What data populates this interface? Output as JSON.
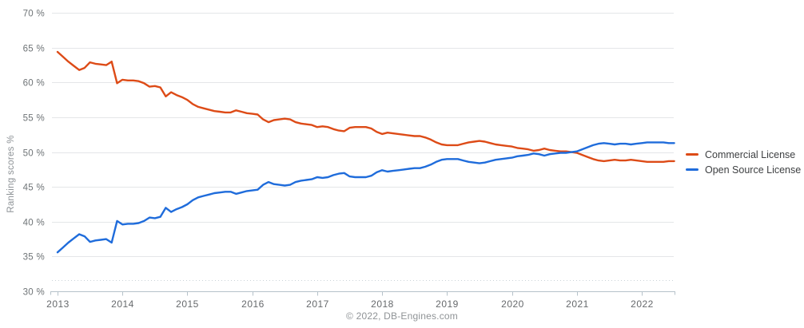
{
  "chart_data": {
    "type": "line",
    "title": "",
    "xlabel": "",
    "ylabel": "Ranking scores %",
    "interval": "monthly",
    "x_start": "2013-01",
    "x_end": "2022-07",
    "grid": "horizontal",
    "legend_position": "right",
    "ylim_axis": [
      30,
      70
    ],
    "x_tick_labels": [
      "2013",
      "2014",
      "2015",
      "2016",
      "2017",
      "2018",
      "2019",
      "2020",
      "2021",
      "2022"
    ],
    "y_ticks": [
      {
        "value": 70,
        "label": "70 %"
      },
      {
        "value": 65,
        "label": "65 %"
      },
      {
        "value": 60,
        "label": "60 %"
      },
      {
        "value": 55,
        "label": "55 %"
      },
      {
        "value": 50,
        "label": "50 %"
      },
      {
        "value": 45,
        "label": "45 %"
      },
      {
        "value": 40,
        "label": "40 %"
      },
      {
        "value": 35,
        "label": "35 %"
      },
      {
        "value": 30,
        "label": "30 %"
      }
    ],
    "series": [
      {
        "name": "Commercial License",
        "color": "#dd4b17",
        "values": [
          64.4,
          63.7,
          63.0,
          62.4,
          61.8,
          62.1,
          62.9,
          62.7,
          62.6,
          62.5,
          63.0,
          59.9,
          60.4,
          60.3,
          60.3,
          60.2,
          59.9,
          59.4,
          59.5,
          59.3,
          58.0,
          58.6,
          58.2,
          57.9,
          57.5,
          56.9,
          56.5,
          56.3,
          56.1,
          55.9,
          55.8,
          55.7,
          55.7,
          56.0,
          55.8,
          55.6,
          55.5,
          55.4,
          54.7,
          54.3,
          54.6,
          54.7,
          54.8,
          54.7,
          54.3,
          54.1,
          54.0,
          53.9,
          53.6,
          53.7,
          53.6,
          53.3,
          53.1,
          53.0,
          53.5,
          53.6,
          53.6,
          53.6,
          53.4,
          52.9,
          52.6,
          52.8,
          52.7,
          52.6,
          52.5,
          52.4,
          52.3,
          52.3,
          52.1,
          51.8,
          51.4,
          51.1,
          51.0,
          51.0,
          51.0,
          51.2,
          51.4,
          51.5,
          51.6,
          51.5,
          51.3,
          51.1,
          51.0,
          50.9,
          50.8,
          50.6,
          50.5,
          50.4,
          50.2,
          50.3,
          50.5,
          50.3,
          50.2,
          50.1,
          50.1,
          50.0,
          49.9,
          49.6,
          49.3,
          49.0,
          48.8,
          48.7,
          48.8,
          48.9,
          48.8,
          48.8,
          48.9,
          48.8,
          48.7,
          48.6,
          48.6,
          48.6,
          48.6,
          48.7,
          48.7
        ]
      },
      {
        "name": "Open Source License",
        "color": "#1f6cdb",
        "values": [
          35.6,
          36.3,
          37.0,
          37.6,
          38.2,
          37.9,
          37.1,
          37.3,
          37.4,
          37.5,
          37.0,
          40.1,
          39.6,
          39.7,
          39.7,
          39.8,
          40.1,
          40.6,
          40.5,
          40.7,
          42.0,
          41.4,
          41.8,
          42.1,
          42.5,
          43.1,
          43.5,
          43.7,
          43.9,
          44.1,
          44.2,
          44.3,
          44.3,
          44.0,
          44.2,
          44.4,
          44.5,
          44.6,
          45.3,
          45.7,
          45.4,
          45.3,
          45.2,
          45.3,
          45.7,
          45.9,
          46.0,
          46.1,
          46.4,
          46.3,
          46.4,
          46.7,
          46.9,
          47.0,
          46.5,
          46.4,
          46.4,
          46.4,
          46.6,
          47.1,
          47.4,
          47.2,
          47.3,
          47.4,
          47.5,
          47.6,
          47.7,
          47.7,
          47.9,
          48.2,
          48.6,
          48.9,
          49.0,
          49.0,
          49.0,
          48.8,
          48.6,
          48.5,
          48.4,
          48.5,
          48.7,
          48.9,
          49.0,
          49.1,
          49.2,
          49.4,
          49.5,
          49.6,
          49.8,
          49.7,
          49.5,
          49.7,
          49.8,
          49.9,
          49.9,
          50.0,
          50.1,
          50.4,
          50.7,
          51.0,
          51.2,
          51.3,
          51.2,
          51.1,
          51.2,
          51.2,
          51.1,
          51.2,
          51.3,
          51.4,
          51.4,
          51.4,
          51.4,
          51.3,
          51.3
        ]
      }
    ]
  },
  "colors": {
    "gridline": "#e4e6e8",
    "axis_line": "#b6c2ca",
    "dotted_line": "#c9d2d7"
  },
  "footer": {
    "copyright": "© 2022, DB-Engines.com"
  }
}
